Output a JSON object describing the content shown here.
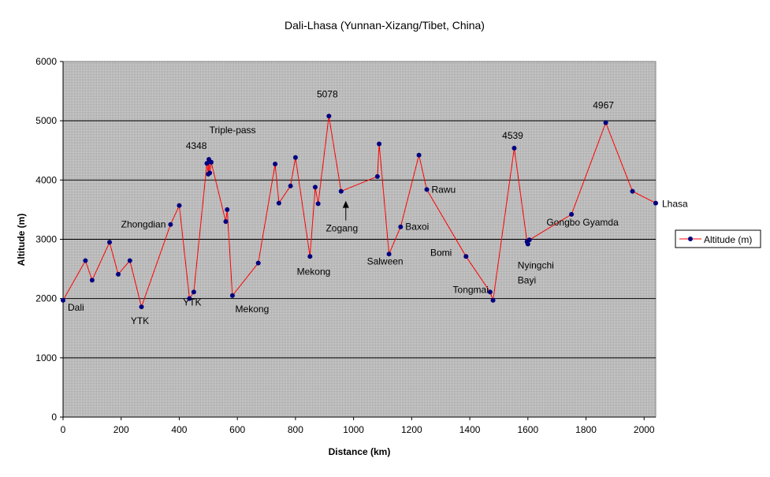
{
  "chart_data": {
    "type": "line",
    "title": "Dali-Lhasa (Yunnan-Xizang/Tibet, China)",
    "xlabel": "Distance (km)",
    "ylabel": "Altitude (m)",
    "xlim": [
      0,
      2040
    ],
    "ylim": [
      0,
      6000
    ],
    "xticks": [
      "0",
      "200",
      "400",
      "600",
      "800",
      "1000",
      "1200",
      "1400",
      "1600",
      "1800",
      "2000"
    ],
    "yticks": [
      "0",
      "1000",
      "2000",
      "3000",
      "4000",
      "5000",
      "6000"
    ],
    "grid": "horizontal major gridlines",
    "legend_position": "right",
    "colors": {
      "plot_background": "#c0c0c0",
      "line": "#ff0000",
      "marker": "#000080",
      "gridline": "#000000"
    },
    "series": [
      {
        "name": "Altitude  (m)",
        "x": [
          0,
          77,
          100,
          160,
          190,
          230,
          270,
          370,
          400,
          435,
          450,
          495,
          500,
          502,
          505,
          510,
          560,
          565,
          583,
          672,
          730,
          743,
          783,
          800,
          850,
          868,
          878,
          915,
          957,
          1082,
          1088,
          1122,
          1162,
          1225,
          1252,
          1387,
          1470,
          1480,
          1553,
          1597,
          1600,
          1605,
          1750,
          1868,
          1960,
          2040
        ],
        "y": [
          1970,
          2640,
          2310,
          2950,
          2410,
          2640,
          1860,
          3250,
          3570,
          2000,
          2110,
          4280,
          4100,
          4348,
          4120,
          4300,
          3300,
          3500,
          2050,
          2600,
          4270,
          3610,
          3900,
          4380,
          2710,
          3880,
          3600,
          5078,
          3810,
          4060,
          4610,
          2750,
          3210,
          4420,
          3840,
          2710,
          2110,
          1970,
          4539,
          2960,
          2920,
          2990,
          3420,
          4967,
          3810,
          3610
        ]
      }
    ],
    "annotations": [
      {
        "text": "Dali",
        "x": 0,
        "y": 1970
      },
      {
        "text": "YTK",
        "x": 270,
        "y": 1860
      },
      {
        "text": "Zhongdian",
        "x": 370,
        "y": 3250
      },
      {
        "text": "YTK",
        "x": 450,
        "y": 2110
      },
      {
        "text": "Triple-pass",
        "x": 502,
        "y": 4348
      },
      {
        "text": "4348",
        "x": 502,
        "y": 4348
      },
      {
        "text": "Mekong",
        "x": 583,
        "y": 2050
      },
      {
        "text": "Mekong",
        "x": 850,
        "y": 2710
      },
      {
        "text": "5078",
        "x": 915,
        "y": 5078
      },
      {
        "text": "Zogang",
        "x": 957,
        "y": 3810
      },
      {
        "text": "Salween",
        "x": 1122,
        "y": 2750
      },
      {
        "text": "Baxoi",
        "x": 1162,
        "y": 3210
      },
      {
        "text": "Rawu",
        "x": 1252,
        "y": 3840
      },
      {
        "text": "Bomi",
        "x": 1387,
        "y": 2710
      },
      {
        "text": "Tongmai",
        "x": 1470,
        "y": 2110
      },
      {
        "text": "4539",
        "x": 1553,
        "y": 4539
      },
      {
        "text": "Nyingchi",
        "x": 1600,
        "y": 2920
      },
      {
        "text": "Bayi",
        "x": 1600,
        "y": 2920
      },
      {
        "text": "Gongbo Gyamda",
        "x": 1750,
        "y": 3420
      },
      {
        "text": "4967",
        "x": 1868,
        "y": 4967
      },
      {
        "text": "Lhasa",
        "x": 2040,
        "y": 3610
      }
    ]
  }
}
